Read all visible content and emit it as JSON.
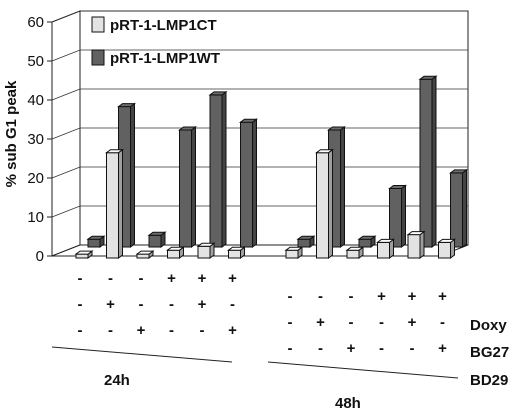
{
  "chart_data": {
    "type": "bar",
    "ylabel": "% sub G1 peak",
    "ylim": [
      0,
      60
    ],
    "yticks": [
      0,
      10,
      20,
      30,
      40,
      50,
      60
    ],
    "grid": true,
    "legend_position": "top-left",
    "series": [
      {
        "name": "pRT-1-LMP1CT",
        "color": "#e3e3e3",
        "values": [
          1,
          27,
          1,
          2,
          3,
          2,
          2,
          27,
          2,
          4,
          6,
          4
        ]
      },
      {
        "name": "pRT-1-LMP1WT",
        "color": "#616161",
        "values": [
          2,
          36,
          3,
          30,
          39,
          32,
          2,
          30,
          2,
          15,
          43,
          19
        ]
      }
    ],
    "groups": [
      {
        "label": "24h",
        "conditions": [
          [
            "-",
            "-",
            "-"
          ],
          [
            "-",
            "+",
            "-"
          ],
          [
            "-",
            "-",
            "+"
          ],
          [
            "+",
            "-",
            "-"
          ],
          [
            "+",
            "+",
            "-"
          ],
          [
            "+",
            "-",
            "+"
          ]
        ]
      },
      {
        "label": "48h",
        "conditions": [
          [
            "-",
            "-",
            "-"
          ],
          [
            "-",
            "+",
            "-"
          ],
          [
            "-",
            "-",
            "+"
          ],
          [
            "+",
            "-",
            "-"
          ],
          [
            "+",
            "+",
            "-"
          ],
          [
            "+",
            "-",
            "+"
          ]
        ]
      }
    ],
    "row_labels": [
      "Doxy",
      "BG27",
      "BD29"
    ]
  }
}
